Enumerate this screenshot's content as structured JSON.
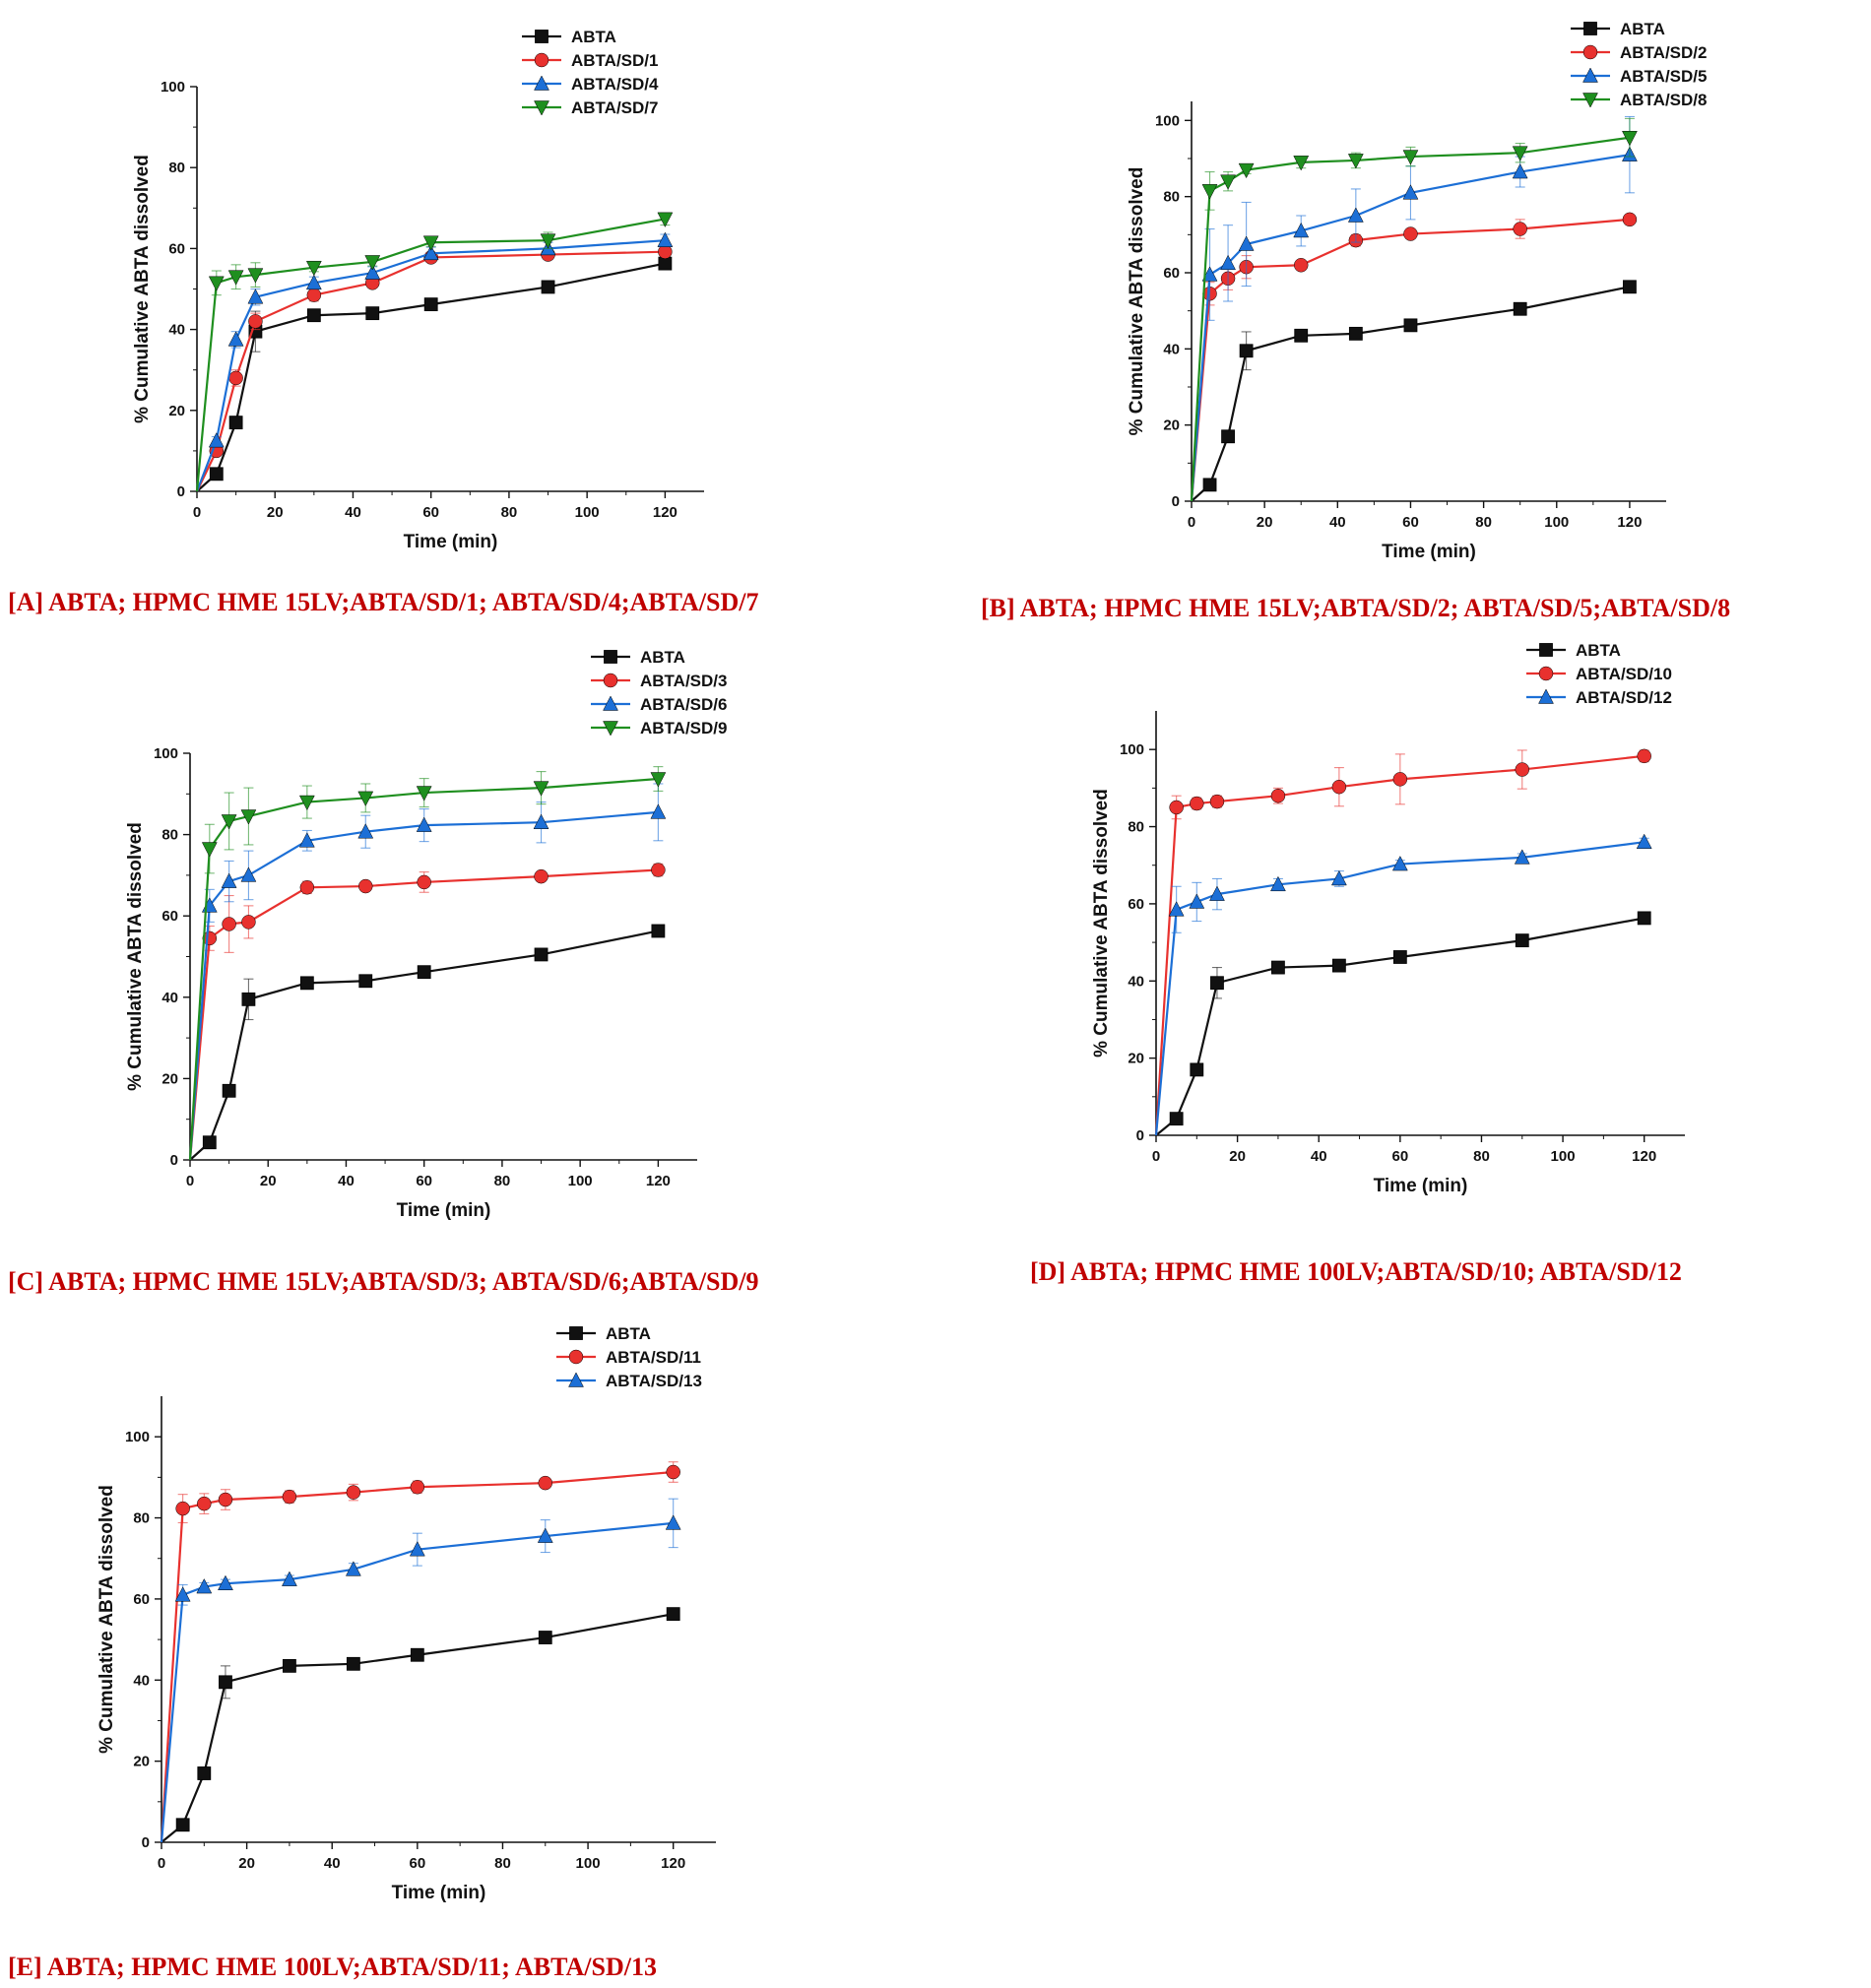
{
  "colors": {
    "ABTA": "#111111",
    "red": "#e8312e",
    "blue": "#1c6fd6",
    "green": "#1f8f1f",
    "caption": "#c00000"
  },
  "chart_data": [
    {
      "id": "A",
      "type": "line",
      "caption": "[A] ABTA; HPMC HME 15LV;ABTA/SD/1; ABTA/SD/4;ABTA/SD/7",
      "xlabel": "Time (min)",
      "ylabel": "% Cumulative ABTA dissolved",
      "xlim": [
        0,
        130
      ],
      "ylim": [
        0,
        100
      ],
      "xticks": [
        0,
        20,
        40,
        60,
        80,
        100,
        120
      ],
      "yticks": [
        0,
        20,
        40,
        60,
        80,
        100
      ],
      "legend_position": "top-right",
      "x": [
        0,
        5,
        10,
        15,
        30,
        45,
        60,
        90,
        120
      ],
      "series": [
        {
          "name": "ABTA",
          "color": "ABTA",
          "marker": "square",
          "values": [
            0,
            4.3,
            17,
            39.5,
            43.5,
            44,
            46.2,
            50.5,
            56.3
          ],
          "errors": [
            0,
            0.5,
            1.5,
            5,
            0.8,
            0.8,
            0.8,
            1,
            0.8
          ]
        },
        {
          "name": "ABTA/SD/1",
          "color": "red",
          "marker": "circle",
          "values": [
            0,
            10,
            28,
            42,
            48.5,
            51.5,
            57.8,
            58.5,
            59.2
          ],
          "errors": [
            0,
            1,
            2,
            2,
            1.5,
            1,
            1,
            1,
            1
          ]
        },
        {
          "name": "ABTA/SD/4",
          "color": "blue",
          "marker": "triangle-up",
          "values": [
            0,
            12.5,
            37.5,
            48,
            51.5,
            54,
            58.8,
            60,
            62
          ],
          "errors": [
            0,
            1,
            2,
            2,
            1.5,
            1.5,
            1.5,
            1.5,
            1.5
          ]
        },
        {
          "name": "ABTA/SD/7",
          "color": "green",
          "marker": "triangle-down",
          "values": [
            0,
            51.5,
            53,
            53.5,
            55.3,
            56.7,
            61.5,
            62,
            67.3
          ],
          "errors": [
            0,
            3,
            3,
            3,
            1,
            1,
            1,
            2,
            1.5
          ]
        }
      ]
    },
    {
      "id": "B",
      "type": "line",
      "caption": "[B] ABTA; HPMC HME 15LV;ABTA/SD/2; ABTA/SD/5;ABTA/SD/8",
      "xlabel": "Time (min)",
      "ylabel": "% Cumulative ABTA dissolved",
      "xlim": [
        0,
        130
      ],
      "ylim": [
        0,
        105
      ],
      "xticks": [
        0,
        20,
        40,
        60,
        80,
        100,
        120
      ],
      "yticks": [
        0,
        20,
        40,
        60,
        80,
        100
      ],
      "legend_position": "top-right",
      "x": [
        0,
        5,
        10,
        15,
        30,
        45,
        60,
        90,
        120
      ],
      "series": [
        {
          "name": "ABTA",
          "color": "ABTA",
          "marker": "square",
          "values": [
            0,
            4.3,
            17,
            39.5,
            43.5,
            44,
            46.2,
            50.5,
            56.3
          ],
          "errors": [
            0,
            0.5,
            1.5,
            5,
            0.8,
            0.8,
            0.8,
            1,
            0.8
          ]
        },
        {
          "name": "ABTA/SD/2",
          "color": "red",
          "marker": "circle",
          "values": [
            0,
            54.5,
            58.5,
            61.5,
            62,
            68.5,
            70.2,
            71.5,
            74
          ],
          "errors": [
            0,
            3,
            3,
            3,
            1,
            1.5,
            1,
            2.5,
            1
          ]
        },
        {
          "name": "ABTA/SD/5",
          "color": "blue",
          "marker": "triangle-up",
          "values": [
            0,
            59.5,
            62.5,
            67.5,
            71,
            75,
            81,
            86.5,
            91
          ],
          "errors": [
            0,
            12,
            10,
            11,
            4,
            7,
            7,
            4,
            10
          ]
        },
        {
          "name": "ABTA/SD/8",
          "color": "green",
          "marker": "triangle-down",
          "values": [
            0,
            81.5,
            84,
            87,
            89,
            89.5,
            90.5,
            91.5,
            95.5
          ],
          "errors": [
            0,
            5,
            2.5,
            1,
            1.5,
            2,
            2.5,
            2.5,
            5
          ]
        }
      ]
    },
    {
      "id": "C",
      "type": "line",
      "caption": "[C] ABTA; HPMC HME 15LV;ABTA/SD/3; ABTA/SD/6;ABTA/SD/9",
      "xlabel": "Time (min)",
      "ylabel": "% Cumulative ABTA dissolved",
      "xlim": [
        0,
        130
      ],
      "ylim": [
        0,
        100
      ],
      "xticks": [
        0,
        20,
        40,
        60,
        80,
        100,
        120
      ],
      "yticks": [
        0,
        20,
        40,
        60,
        80,
        100
      ],
      "legend_position": "top-right",
      "x": [
        0,
        5,
        10,
        15,
        30,
        45,
        60,
        90,
        120
      ],
      "series": [
        {
          "name": "ABTA",
          "color": "ABTA",
          "marker": "square",
          "values": [
            0,
            4.3,
            17,
            39.5,
            43.5,
            44,
            46.2,
            50.5,
            56.3
          ],
          "errors": [
            0,
            0.5,
            1.5,
            5,
            0.8,
            0.8,
            0.8,
            1.2,
            0.8
          ]
        },
        {
          "name": "ABTA/SD/3",
          "color": "red",
          "marker": "circle",
          "values": [
            0,
            54.5,
            58,
            58.5,
            67,
            67.3,
            68.3,
            69.7,
            71.3
          ],
          "errors": [
            0,
            3,
            7,
            4,
            1.5,
            1,
            2.5,
            1,
            1.5
          ]
        },
        {
          "name": "ABTA/SD/6",
          "color": "blue",
          "marker": "triangle-up",
          "values": [
            0,
            62.5,
            68.5,
            70,
            78.5,
            80.7,
            82.3,
            83,
            85.5
          ],
          "errors": [
            0,
            4,
            5,
            6,
            2.5,
            4,
            4,
            5,
            7
          ]
        },
        {
          "name": "ABTA/SD/9",
          "color": "green",
          "marker": "triangle-down",
          "values": [
            0,
            76.5,
            83.3,
            84.5,
            88,
            89,
            90.3,
            91.5,
            93.7
          ],
          "errors": [
            0,
            6,
            7,
            7,
            4,
            3.5,
            3.5,
            4,
            3
          ]
        }
      ]
    },
    {
      "id": "D",
      "type": "line",
      "caption": "[D] ABTA; HPMC HME 100LV;ABTA/SD/10; ABTA/SD/12",
      "xlabel": "Time (min)",
      "ylabel": "% Cumulative ABTA dissolved",
      "xlim": [
        0,
        130
      ],
      "ylim": [
        0,
        110
      ],
      "xticks": [
        0,
        20,
        40,
        60,
        80,
        100,
        120
      ],
      "yticks": [
        0,
        20,
        40,
        60,
        80,
        100
      ],
      "legend_position": "top-right",
      "x": [
        0,
        5,
        10,
        15,
        30,
        45,
        60,
        90,
        120
      ],
      "series": [
        {
          "name": "ABTA",
          "color": "ABTA",
          "marker": "square",
          "values": [
            0,
            4.3,
            17,
            39.5,
            43.5,
            44,
            46.2,
            50.5,
            56.3
          ],
          "errors": [
            0,
            0.5,
            1.5,
            4,
            0.8,
            0.8,
            0.8,
            1,
            0.8
          ]
        },
        {
          "name": "ABTA/SD/10",
          "color": "red",
          "marker": "circle",
          "values": [
            0,
            85,
            86,
            86.5,
            88,
            90.3,
            92.3,
            94.8,
            98.3
          ],
          "errors": [
            0,
            3,
            1.5,
            1.5,
            2,
            5,
            6.5,
            5,
            1.5
          ]
        },
        {
          "name": "ABTA/SD/12",
          "color": "blue",
          "marker": "triangle-up",
          "values": [
            0,
            58.5,
            60.5,
            62.5,
            65,
            66.5,
            70.3,
            72,
            76
          ],
          "errors": [
            0,
            6,
            5,
            4,
            1.5,
            2,
            1,
            1,
            1
          ]
        }
      ]
    },
    {
      "id": "E",
      "type": "line",
      "caption": "[E] ABTA; HPMC HME 100LV;ABTA/SD/11; ABTA/SD/13",
      "xlabel": "Time (min)",
      "ylabel": "% Cumulative ABTA dissolved",
      "xlim": [
        0,
        130
      ],
      "ylim": [
        0,
        110
      ],
      "xticks": [
        0,
        20,
        40,
        60,
        80,
        100,
        120
      ],
      "yticks": [
        0,
        20,
        40,
        60,
        80,
        100
      ],
      "legend_position": "top-right",
      "x": [
        0,
        5,
        10,
        15,
        30,
        45,
        60,
        90,
        120
      ],
      "series": [
        {
          "name": "ABTA",
          "color": "ABTA",
          "marker": "square",
          "values": [
            0,
            4.3,
            17,
            39.5,
            43.5,
            44,
            46.2,
            50.5,
            56.3
          ],
          "errors": [
            0,
            0.5,
            1.5,
            4,
            0.8,
            0.8,
            0.8,
            1,
            0.8
          ]
        },
        {
          "name": "ABTA/SD/11",
          "color": "red",
          "marker": "circle",
          "values": [
            0,
            82.3,
            83.5,
            84.5,
            85.2,
            86.3,
            87.6,
            88.6,
            91.3
          ],
          "errors": [
            0,
            3.5,
            2.5,
            2.5,
            1.5,
            2,
            1.5,
            1,
            2.5
          ]
        },
        {
          "name": "ABTA/SD/13",
          "color": "blue",
          "marker": "triangle-up",
          "values": [
            0,
            61,
            63,
            63.8,
            64.8,
            67.3,
            72.2,
            75.5,
            78.7
          ],
          "errors": [
            0,
            2.5,
            1,
            1,
            1,
            1.5,
            4,
            4,
            6
          ]
        }
      ]
    }
  ]
}
